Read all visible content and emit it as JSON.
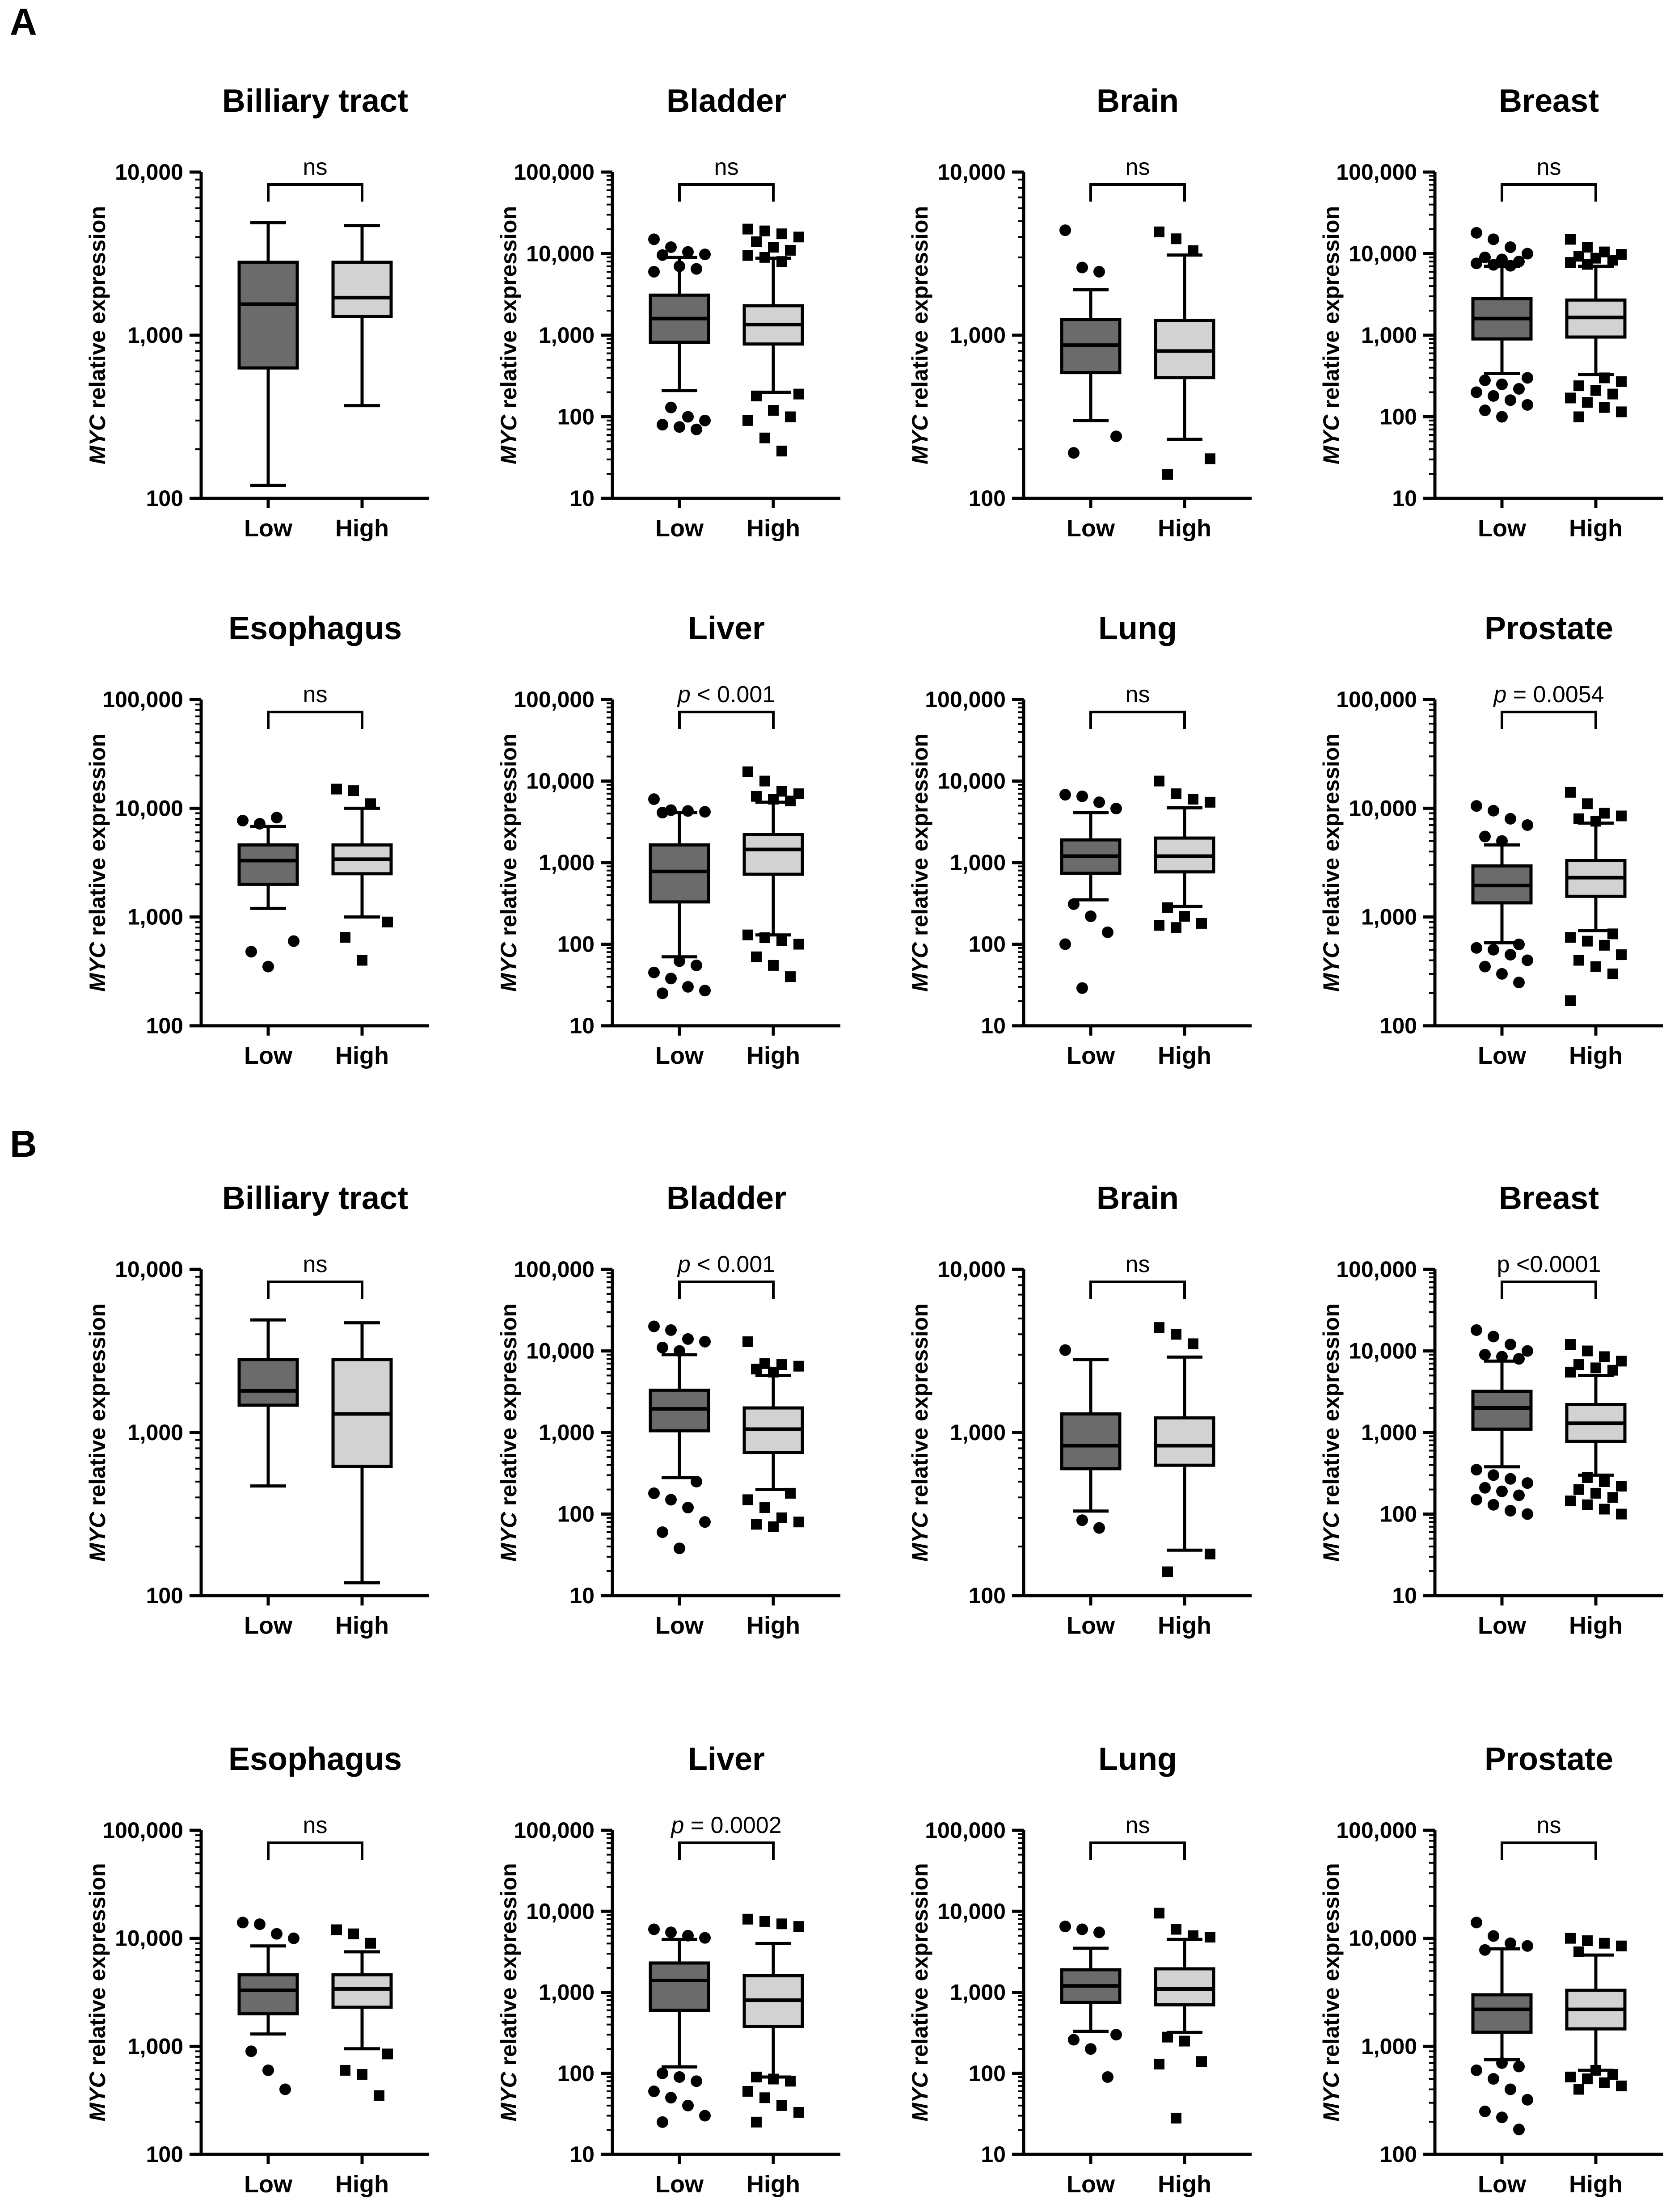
{
  "panel_labels": [
    "A",
    "B"
  ],
  "ylabel_italic": "MYC",
  "ylabel_rest": " relative expression",
  "low_label": "Low",
  "high_label": "High",
  "chart_data": [
    {
      "panel": "A",
      "type": "box",
      "title": "Billiary tract",
      "categories": [
        "Low",
        "High"
      ],
      "ylabel": "MYC relative expression",
      "yscale": "log",
      "ylim": [
        100,
        10000
      ],
      "yticks": [
        "100",
        "1,000",
        "10,000"
      ],
      "sig": {
        "italic": "",
        "text": "ns"
      },
      "boxes": [
        {
          "min": 120,
          "q1": 630,
          "median": 1550,
          "q3": 2800,
          "max": 4900,
          "outliers": []
        },
        {
          "min": 370,
          "q1": 1300,
          "median": 1700,
          "q3": 2800,
          "max": 4700,
          "outliers": []
        }
      ]
    },
    {
      "panel": "A",
      "type": "box",
      "title": "Bladder",
      "categories": [
        "Low",
        "High"
      ],
      "ylabel": "MYC relative expression",
      "yscale": "log",
      "ylim": [
        10,
        100000
      ],
      "yticks": [
        "10",
        "100",
        "1,000",
        "10,000",
        "100,000"
      ],
      "sig": {
        "italic": "",
        "text": "ns"
      },
      "boxes": [
        {
          "min": 210,
          "q1": 820,
          "median": 1600,
          "q3": 3100,
          "max": 9000,
          "outliers": [
            15000,
            12000,
            10500,
            9800,
            9600,
            7000,
            6500,
            6000,
            130,
            100,
            90,
            80,
            75,
            70
          ]
        },
        {
          "min": 200,
          "q1": 780,
          "median": 1350,
          "q3": 2300,
          "max": 8800,
          "outliers": [
            20000,
            19000,
            17500,
            16000,
            14000,
            12000,
            11000,
            9500,
            9000,
            8000,
            190,
            180,
            120,
            100,
            90,
            55,
            38
          ]
        }
      ]
    },
    {
      "panel": "A",
      "type": "box",
      "title": "Brain",
      "categories": [
        "Low",
        "High"
      ],
      "ylabel": "MYC relative expression",
      "yscale": "log",
      "ylim": [
        100,
        10000
      ],
      "yticks": [
        "100",
        "1,000",
        "10,000"
      ],
      "sig": {
        "italic": "",
        "text": "ns"
      },
      "boxes": [
        {
          "min": 300,
          "q1": 590,
          "median": 870,
          "q3": 1250,
          "max": 1900,
          "outliers": [
            4400,
            2600,
            2450,
            240,
            190
          ]
        },
        {
          "min": 230,
          "q1": 550,
          "median": 800,
          "q3": 1230,
          "max": 3100,
          "outliers": [
            4300,
            3900,
            3300,
            175,
            140
          ]
        }
      ]
    },
    {
      "panel": "A",
      "type": "box",
      "title": "Breast",
      "categories": [
        "Low",
        "High"
      ],
      "ylabel": "MYC relative expression",
      "yscale": "log",
      "ylim": [
        10,
        100000
      ],
      "yticks": [
        "10",
        "100",
        "1,000",
        "10,000",
        "100,000"
      ],
      "sig": {
        "italic": "",
        "text": "ns"
      },
      "boxes": [
        {
          "min": 340,
          "q1": 900,
          "median": 1600,
          "q3": 2800,
          "max": 7000,
          "outliers": [
            18000,
            15000,
            12000,
            10000,
            9000,
            8500,
            8000,
            7600,
            7300,
            7100,
            300,
            280,
            250,
            220,
            200,
            180,
            160,
            140,
            120,
            100
          ]
        },
        {
          "min": 330,
          "q1": 950,
          "median": 1650,
          "q3": 2700,
          "max": 7000,
          "outliers": [
            15000,
            12000,
            10500,
            9800,
            9300,
            8800,
            8300,
            7800,
            7400,
            300,
            270,
            240,
            210,
            190,
            170,
            150,
            130,
            115,
            100
          ]
        }
      ]
    },
    {
      "panel": "A",
      "type": "box",
      "title": "Esophagus",
      "categories": [
        "Low",
        "High"
      ],
      "ylabel": "MYC relative expression",
      "yscale": "log",
      "ylim": [
        100,
        100000
      ],
      "yticks": [
        "100",
        "1,000",
        "10,000",
        "100,000"
      ],
      "sig": {
        "italic": "",
        "text": "ns"
      },
      "boxes": [
        {
          "min": 1200,
          "q1": 2000,
          "median": 3300,
          "q3": 4600,
          "max": 6800,
          "outliers": [
            7700,
            7200,
            8200,
            600,
            480,
            350
          ]
        },
        {
          "min": 1000,
          "q1": 2500,
          "median": 3400,
          "q3": 4600,
          "max": 10000,
          "outliers": [
            15000,
            14500,
            11000,
            900,
            650,
            400
          ]
        }
      ]
    },
    {
      "panel": "A",
      "type": "box",
      "title": "Liver",
      "categories": [
        "Low",
        "High"
      ],
      "ylabel": "MYC relative expression",
      "yscale": "log",
      "ylim": [
        10,
        100000
      ],
      "yticks": [
        "10",
        "100",
        "1,000",
        "10,000",
        "100,000"
      ],
      "sig": {
        "italic": "p",
        "text": " < 0.001"
      },
      "boxes": [
        {
          "min": 70,
          "q1": 330,
          "median": 780,
          "q3": 1650,
          "max": 4100,
          "outliers": [
            6000,
            4400,
            4300,
            4200,
            4100,
            62,
            55,
            45,
            38,
            30,
            27,
            25
          ]
        },
        {
          "min": 130,
          "q1": 720,
          "median": 1450,
          "q3": 2200,
          "max": 5500,
          "outliers": [
            13000,
            10000,
            7500,
            7000,
            6500,
            6000,
            5700,
            130,
            120,
            110,
            100,
            70,
            55,
            40
          ]
        }
      ]
    },
    {
      "panel": "A",
      "type": "box",
      "title": "Lung",
      "categories": [
        "Low",
        "High"
      ],
      "ylabel": "MYC relative expression",
      "yscale": "log",
      "ylim": [
        10,
        100000
      ],
      "yticks": [
        "10",
        "100",
        "1,000",
        "10,000",
        "100,000"
      ],
      "sig": {
        "italic": "",
        "text": "ns"
      },
      "boxes": [
        {
          "min": 350,
          "q1": 740,
          "median": 1200,
          "q3": 1900,
          "max": 4100,
          "outliers": [
            6800,
            6500,
            5500,
            4600,
            310,
            220,
            140,
            100,
            29
          ]
        },
        {
          "min": 290,
          "q1": 770,
          "median": 1200,
          "q3": 2000,
          "max": 4700,
          "outliers": [
            10000,
            7000,
            6000,
            5500,
            280,
            220,
            180,
            170,
            160
          ]
        }
      ]
    },
    {
      "panel": "A",
      "type": "box",
      "title": "Prostate",
      "categories": [
        "Low",
        "High"
      ],
      "ylabel": "MYC relative expression",
      "yscale": "log",
      "ylim": [
        100,
        100000
      ],
      "yticks": [
        "100",
        "1,000",
        "10,000",
        "100,000"
      ],
      "sig": {
        "italic": "p",
        "text": " = 0.0054"
      },
      "boxes": [
        {
          "min": 580,
          "q1": 1350,
          "median": 1950,
          "q3": 2950,
          "max": 4600,
          "outliers": [
            10500,
            9500,
            8000,
            7000,
            5500,
            5000,
            560,
            520,
            500,
            450,
            400,
            350,
            300,
            250
          ]
        },
        {
          "min": 750,
          "q1": 1550,
          "median": 2300,
          "q3": 3300,
          "max": 7300,
          "outliers": [
            14000,
            11000,
            9000,
            8500,
            8000,
            7600,
            700,
            650,
            600,
            550,
            450,
            400,
            350,
            300,
            170
          ]
        }
      ]
    },
    {
      "panel": "B",
      "type": "box",
      "title": "Billiary tract",
      "categories": [
        "Low",
        "High"
      ],
      "ylabel": "MYC relative expression",
      "yscale": "log",
      "ylim": [
        100,
        10000
      ],
      "yticks": [
        "100",
        "1,000",
        "10,000"
      ],
      "sig": {
        "italic": "",
        "text": "ns"
      },
      "boxes": [
        {
          "min": 470,
          "q1": 1470,
          "median": 1800,
          "q3": 2800,
          "max": 4900,
          "outliers": []
        },
        {
          "min": 120,
          "q1": 620,
          "median": 1300,
          "q3": 2800,
          "max": 4700,
          "outliers": []
        }
      ]
    },
    {
      "panel": "B",
      "type": "box",
      "title": "Bladder",
      "categories": [
        "Low",
        "High"
      ],
      "ylabel": "MYC relative expression",
      "yscale": "log",
      "ylim": [
        10,
        100000
      ],
      "yticks": [
        "10",
        "100",
        "1,000",
        "10,000",
        "100,000"
      ],
      "sig": {
        "italic": "p",
        "text": " < 0.001"
      },
      "boxes": [
        {
          "min": 280,
          "q1": 1050,
          "median": 1950,
          "q3": 3300,
          "max": 9000,
          "outliers": [
            20000,
            18000,
            14000,
            13000,
            11000,
            10000,
            250,
            180,
            150,
            120,
            80,
            60,
            38
          ]
        },
        {
          "min": 200,
          "q1": 570,
          "median": 1100,
          "q3": 2000,
          "max": 5000,
          "outliers": [
            13000,
            7000,
            6800,
            6500,
            6000,
            5500,
            180,
            150,
            120,
            90,
            80,
            75,
            70
          ]
        }
      ]
    },
    {
      "panel": "B",
      "type": "box",
      "title": "Brain",
      "categories": [
        "Low",
        "High"
      ],
      "ylabel": "MYC relative expression",
      "yscale": "log",
      "ylim": [
        100,
        10000
      ],
      "yticks": [
        "100",
        "1,000",
        "10,000"
      ],
      "sig": {
        "italic": "",
        "text": "ns"
      },
      "boxes": [
        {
          "min": 330,
          "q1": 600,
          "median": 830,
          "q3": 1300,
          "max": 2800,
          "outliers": [
            3200,
            290,
            260
          ]
        },
        {
          "min": 190,
          "q1": 630,
          "median": 830,
          "q3": 1230,
          "max": 2900,
          "outliers": [
            4400,
            4000,
            3500,
            180,
            140
          ]
        }
      ]
    },
    {
      "panel": "B",
      "type": "box",
      "title": "Breast",
      "categories": [
        "Low",
        "High"
      ],
      "ylabel": "MYC relative expression",
      "yscale": "log",
      "ylim": [
        10,
        100000
      ],
      "yticks": [
        "10",
        "100",
        "1,000",
        "10,000",
        "100,000"
      ],
      "sig": {
        "italic": "",
        "text": "p <0.0001"
      },
      "boxes": [
        {
          "min": 380,
          "q1": 1100,
          "median": 2000,
          "q3": 3200,
          "max": 7500,
          "outliers": [
            18000,
            15000,
            12000,
            10000,
            9000,
            8500,
            8000,
            350,
            300,
            270,
            240,
            210,
            190,
            170,
            150,
            130,
            110,
            100
          ]
        },
        {
          "min": 300,
          "q1": 780,
          "median": 1300,
          "q3": 2200,
          "max": 5000,
          "outliers": [
            12000,
            10000,
            8500,
            7500,
            6800,
            6200,
            5800,
            5500,
            280,
            250,
            220,
            200,
            180,
            160,
            145,
            130,
            115,
            100
          ]
        }
      ]
    },
    {
      "panel": "B",
      "type": "box",
      "title": "Esophagus",
      "categories": [
        "Low",
        "High"
      ],
      "ylabel": "MYC relative expression",
      "yscale": "log",
      "ylim": [
        100,
        100000
      ],
      "yticks": [
        "100",
        "1,000",
        "10,000",
        "100,000"
      ],
      "sig": {
        "italic": "",
        "text": "ns"
      },
      "boxes": [
        {
          "min": 1300,
          "q1": 2000,
          "median": 3300,
          "q3": 4600,
          "max": 8500,
          "outliers": [
            14000,
            13500,
            11000,
            10000,
            900,
            600,
            400
          ]
        },
        {
          "min": 950,
          "q1": 2300,
          "median": 3400,
          "q3": 4600,
          "max": 7500,
          "outliers": [
            12000,
            11000,
            9000,
            850,
            600,
            550,
            350
          ]
        }
      ]
    },
    {
      "panel": "B",
      "type": "box",
      "title": "Liver",
      "categories": [
        "Low",
        "High"
      ],
      "ylabel": "MYC relative expression",
      "yscale": "log",
      "ylim": [
        10,
        100000
      ],
      "yticks": [
        "10",
        "100",
        "1,000",
        "10,000",
        "100,000"
      ],
      "sig": {
        "italic": "p",
        "text": " = 0.0002"
      },
      "boxes": [
        {
          "min": 120,
          "q1": 600,
          "median": 1400,
          "q3": 2300,
          "max": 4500,
          "outliers": [
            6000,
            5500,
            5000,
            4700,
            100,
            90,
            80,
            60,
            50,
            40,
            30,
            25
          ]
        },
        {
          "min": 90,
          "q1": 380,
          "median": 800,
          "q3": 1600,
          "max": 4000,
          "outliers": [
            8000,
            7500,
            7000,
            6500,
            90,
            85,
            80,
            60,
            50,
            40,
            33,
            25
          ]
        }
      ]
    },
    {
      "panel": "B",
      "type": "box",
      "title": "Lung",
      "categories": [
        "Low",
        "High"
      ],
      "ylabel": "MYC relative expression",
      "yscale": "log",
      "ylim": [
        10,
        100000
      ],
      "yticks": [
        "10",
        "100",
        "1,000",
        "10,000",
        "100,000"
      ],
      "sig": {
        "italic": "",
        "text": "ns"
      },
      "boxes": [
        {
          "min": 330,
          "q1": 750,
          "median": 1200,
          "q3": 1900,
          "max": 3500,
          "outliers": [
            6500,
            6000,
            5500,
            300,
            260,
            200,
            90
          ]
        },
        {
          "min": 320,
          "q1": 700,
          "median": 1100,
          "q3": 1950,
          "max": 4500,
          "outliers": [
            9500,
            6000,
            5000,
            4800,
            280,
            250,
            140,
            130,
            28
          ]
        }
      ]
    },
    {
      "panel": "B",
      "type": "box",
      "title": "Prostate",
      "categories": [
        "Low",
        "High"
      ],
      "ylabel": "MYC relative expression",
      "yscale": "log",
      "ylim": [
        100,
        100000
      ],
      "yticks": [
        "100",
        "1,000",
        "10,000",
        "100,000"
      ],
      "sig": {
        "italic": "",
        "text": "ns"
      },
      "boxes": [
        {
          "min": 750,
          "q1": 1350,
          "median": 2200,
          "q3": 3000,
          "max": 8000,
          "outliers": [
            14000,
            10500,
            9000,
            8500,
            7800,
            700,
            650,
            600,
            500,
            400,
            320,
            250,
            220,
            170
          ]
        },
        {
          "min": 600,
          "q1": 1450,
          "median": 2200,
          "q3": 3300,
          "max": 7000,
          "outliers": [
            10000,
            9500,
            9000,
            8500,
            7500,
            600,
            550,
            520,
            500,
            460,
            430,
            400
          ]
        }
      ]
    }
  ]
}
